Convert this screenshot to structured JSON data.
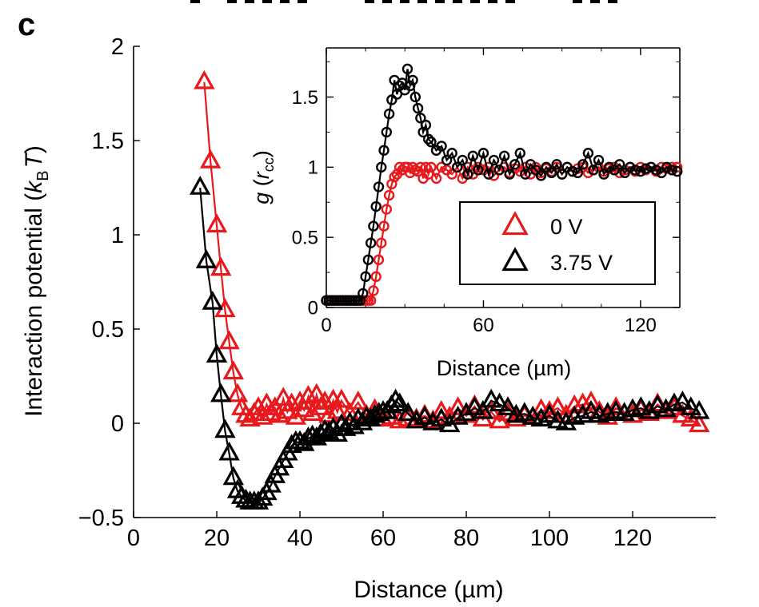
{
  "panel_label": "c",
  "main": {
    "xlabel": "Distance (µm)",
    "ylabel_prefix": "Interaction potential (",
    "ylabel_k": "k",
    "ylabel_sub": "B",
    "ylabel_T": "T",
    "ylabel_suffix": ")"
  },
  "inset": {
    "xlabel": "Distance (µm)",
    "ylabel_g": "g",
    "ylabel_open": " (",
    "ylabel_r": "r",
    "ylabel_sub": "cc",
    "ylabel_close": ")"
  },
  "colors": {
    "red": "#e8191c",
    "black": "#000000"
  },
  "chart_data": [
    {
      "type": "line",
      "marker": "triangle-open",
      "xlabel": "Distance (µm)",
      "ylabel": "Interaction potential (kBT)",
      "xlim": [
        0,
        140
      ],
      "ylim": [
        -0.5,
        2
      ],
      "xticks": [
        "0",
        "20",
        "40",
        "60",
        "80",
        "100",
        "120"
      ],
      "yticks": [
        "−0.5",
        "0",
        "0.5",
        "1",
        "1.5",
        "2"
      ],
      "legend": "inset top-right",
      "series": [
        {
          "name": "0 V",
          "color": "#e8191c",
          "x": [
            17,
            18.5,
            20,
            21,
            22,
            23,
            24,
            25,
            26,
            27,
            28,
            29,
            30,
            31,
            32,
            33,
            34,
            35,
            36,
            37,
            38,
            39,
            40,
            41,
            42,
            43,
            44,
            45,
            46,
            47,
            48,
            49,
            50,
            52,
            54,
            56,
            58,
            60,
            62,
            64,
            66,
            68,
            70,
            72,
            74,
            76,
            78,
            80,
            82,
            84,
            86,
            88,
            90,
            92,
            94,
            96,
            98,
            100,
            102,
            104,
            106,
            108,
            110,
            112,
            114,
            116,
            118,
            120,
            122,
            124,
            126,
            128,
            130,
            132,
            134,
            136
          ],
          "y": [
            1.81,
            1.39,
            1.05,
            0.82,
            0.6,
            0.43,
            0.27,
            0.15,
            0.08,
            0.04,
            0.02,
            0.05,
            0.08,
            0.03,
            0.1,
            0.05,
            0.08,
            0.04,
            0.13,
            0.06,
            0.1,
            0.03,
            0.11,
            0.07,
            0.14,
            0.05,
            0.15,
            0.08,
            0.11,
            0.04,
            0.12,
            0.06,
            0.12,
            0.05,
            0.11,
            0.04,
            0.07,
            0.02,
            0.03,
            0.01,
            0.02,
            0.02,
            0.04,
            0.01,
            0.06,
            0.03,
            0.08,
            0.04,
            0.09,
            0.02,
            0.06,
            0.01,
            0.05,
            0.02,
            0.04,
            0.03,
            0.07,
            0.06,
            0.08,
            0.04,
            0.09,
            0.1,
            0.11,
            0.06,
            0.03,
            0.08,
            0.05,
            0.04,
            0.07,
            0.05,
            0.1,
            0.06,
            0.08,
            0.04,
            0.02,
            -0.01
          ]
        },
        {
          "name": "3.75 V",
          "color": "#000000",
          "x": [
            16,
            17.5,
            19,
            20,
            21,
            22,
            23,
            24,
            25,
            26,
            27,
            28,
            29,
            30,
            31,
            32,
            33,
            34,
            35,
            36,
            37,
            38,
            39,
            40,
            41,
            42,
            43,
            44,
            45,
            46,
            47,
            48,
            49,
            50,
            51,
            52,
            53,
            54,
            55,
            56,
            57,
            58,
            59,
            60,
            61,
            62,
            63,
            64,
            66,
            68,
            70,
            72,
            74,
            76,
            78,
            80,
            82,
            84,
            86,
            88,
            90,
            92,
            94,
            96,
            98,
            100,
            102,
            104,
            106,
            108,
            110,
            112,
            114,
            116,
            118,
            120,
            122,
            124,
            126,
            128,
            130,
            132,
            134,
            136
          ],
          "y": [
            1.25,
            0.86,
            0.64,
            0.36,
            0.15,
            -0.04,
            -0.16,
            -0.29,
            -0.36,
            -0.39,
            -0.41,
            -0.42,
            -0.42,
            -0.42,
            -0.4,
            -0.37,
            -0.33,
            -0.28,
            -0.24,
            -0.2,
            -0.16,
            -0.12,
            -0.1,
            -0.1,
            -0.11,
            -0.08,
            -0.07,
            -0.08,
            -0.06,
            -0.04,
            -0.05,
            -0.03,
            -0.06,
            -0.01,
            -0.03,
            0.0,
            -0.02,
            0.02,
            0.0,
            0.03,
            0.02,
            0.04,
            0.05,
            0.06,
            0.06,
            0.09,
            0.12,
            0.1,
            0.05,
            0.01,
            0.03,
            0.0,
            0.02,
            -0.01,
            0.03,
            0.05,
            0.08,
            0.06,
            0.12,
            0.1,
            0.08,
            0.04,
            0.05,
            0.03,
            0.02,
            0.04,
            0.01,
            0.0,
            0.03,
            0.04,
            0.06,
            0.04,
            0.05,
            0.06,
            0.05,
            0.07,
            0.08,
            0.06,
            0.09,
            0.07,
            0.1,
            0.11,
            0.08,
            0.06
          ]
        }
      ]
    },
    {
      "type": "line",
      "marker": "circle-open",
      "xlabel": "Distance (µm)",
      "ylabel": "g (rcc)",
      "xlim": [
        0,
        135
      ],
      "ylim": [
        0,
        1.85
      ],
      "xticks": [
        "0",
        "60",
        "120"
      ],
      "yticks": [
        "0",
        "0.5",
        "1",
        "1.5"
      ],
      "legend": "right",
      "series": [
        {
          "name": "0 V",
          "color": "#e8191c",
          "x": [
            0,
            1,
            2,
            3,
            4,
            5,
            6,
            7,
            8,
            9,
            10,
            11,
            12,
            13,
            14,
            15,
            16,
            17,
            18,
            19,
            20,
            21,
            22,
            23,
            24,
            25,
            26,
            27,
            28,
            29,
            30,
            31,
            32,
            33,
            34,
            35,
            36,
            37,
            38,
            39,
            40,
            42,
            44,
            46,
            48,
            50,
            52,
            54,
            56,
            58,
            60,
            62,
            64,
            66,
            68,
            70,
            72,
            74,
            76,
            78,
            80,
            82,
            84,
            86,
            88,
            90,
            92,
            94,
            96,
            98,
            100,
            102,
            104,
            106,
            108,
            110,
            112,
            114,
            116,
            118,
            120,
            122,
            124,
            126,
            128,
            130,
            132,
            134
          ],
          "y": [
            0.05,
            0.05,
            0.05,
            0.05,
            0.05,
            0.05,
            0.05,
            0.05,
            0.05,
            0.05,
            0.05,
            0.05,
            0.05,
            0.05,
            0.05,
            0.05,
            0.05,
            0.05,
            0.12,
            0.22,
            0.34,
            0.46,
            0.58,
            0.7,
            0.8,
            0.88,
            0.93,
            0.95,
            1.0,
            0.98,
            1.0,
            1.0,
            0.96,
            1.0,
            0.98,
            0.97,
            1.0,
            0.92,
            1.0,
            0.95,
            1.0,
            0.92,
            1.0,
            0.98,
            0.95,
            1.0,
            0.92,
            1.0,
            0.95,
            1.0,
            0.98,
            1.0,
            0.94,
            0.98,
            1.0,
            0.96,
            0.99,
            0.97,
            1.0,
            0.95,
            1.0,
            0.96,
            0.99,
            0.97,
            1.0,
            0.95,
            1.0,
            0.97,
            0.99,
            1.0,
            0.96,
            0.98,
            1.0,
            0.97,
            0.99,
            1.0,
            0.96,
            0.98,
            1.0,
            0.97,
            1.0,
            0.98,
            1.0,
            0.97,
            1.0,
            0.99,
            1.0,
            1.0
          ]
        },
        {
          "name": "3.75 V",
          "color": "#000000",
          "x": [
            0,
            1,
            2,
            3,
            4,
            5,
            6,
            7,
            8,
            9,
            10,
            11,
            12,
            13,
            14,
            15,
            16,
            17,
            18,
            19,
            20,
            21,
            22,
            23,
            24,
            25,
            26,
            27,
            28,
            29,
            30,
            31,
            32,
            33,
            34,
            35,
            36,
            37,
            38,
            39,
            40,
            42,
            44,
            46,
            48,
            50,
            52,
            54,
            56,
            58,
            60,
            62,
            64,
            66,
            68,
            70,
            72,
            74,
            76,
            78,
            80,
            82,
            84,
            86,
            88,
            90,
            92,
            94,
            96,
            98,
            100,
            102,
            104,
            106,
            108,
            110,
            112,
            114,
            116,
            118,
            120,
            122,
            124,
            126,
            128,
            130,
            132,
            134
          ],
          "y": [
            0.05,
            0.05,
            0.05,
            0.05,
            0.05,
            0.05,
            0.05,
            0.05,
            0.05,
            0.05,
            0.05,
            0.05,
            0.05,
            0.05,
            0.1,
            0.22,
            0.34,
            0.46,
            0.58,
            0.72,
            0.86,
            1.0,
            1.12,
            1.25,
            1.38,
            1.48,
            1.62,
            1.52,
            1.58,
            1.6,
            1.55,
            1.7,
            1.58,
            1.62,
            1.5,
            1.42,
            1.35,
            1.25,
            1.3,
            1.2,
            1.18,
            1.12,
            1.15,
            1.05,
            1.1,
            1.0,
            1.05,
            0.95,
            1.08,
            0.98,
            1.1,
            0.95,
            1.05,
            0.98,
            1.08,
            0.95,
            1.02,
            1.1,
            0.95,
            1.02,
            0.98,
            0.94,
            1.0,
            0.96,
            1.02,
            0.95,
            1.0,
            0.97,
            0.96,
            1.02,
            1.1,
            0.98,
            1.05,
            0.95,
            1.0,
            0.98,
            1.02,
            0.96,
            1.0,
            0.98,
            0.97,
            0.99,
            1.0,
            0.98,
            0.96,
            1.0,
            0.98,
            0.97
          ]
        }
      ]
    }
  ]
}
